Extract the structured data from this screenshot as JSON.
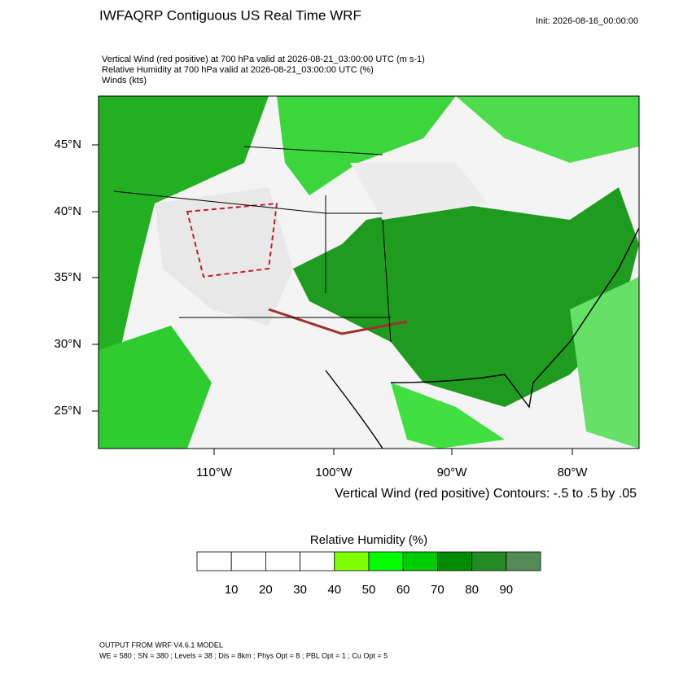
{
  "header": {
    "title": "IWFAQRP Contiguous US Real Time WRF",
    "init": "Init: 2026-08-16_00:00:00"
  },
  "subtitle": [
    "Vertical Wind (red positive) at 700 hPa valid at 2026-08-21_03:00:00 UTC   (m s-1)",
    "Relative Humidity at 700 hPa valid at 2026-08-21_03:00:00 UTC   (%)",
    "Winds   (kts)"
  ],
  "map": {
    "lat_labels": [
      "45°N",
      "40°N",
      "35°N",
      "30°N",
      "25°N"
    ],
    "lon_labels": [
      "110°W",
      "100°W",
      "90°W",
      "80°W"
    ],
    "contour_note": "Vertical Wind (red positive) Contours: -.5 to .5 by .05"
  },
  "colorbar": {
    "title": "Relative Humidity  (%)",
    "labels": [
      "10",
      "20",
      "30",
      "40",
      "50",
      "60",
      "70",
      "80",
      "90"
    ],
    "colors": [
      "#ffffff",
      "#ffffff",
      "#ffffff",
      "#ffffff",
      "#80ff00",
      "#00ff00",
      "#00cd00",
      "#008b00",
      "#228b22",
      "#548b54"
    ]
  },
  "footer": [
    "OUTPUT FROM WRF V4.6.1 MODEL",
    "WE = 580 ; SN = 380 ; Levels = 38 ; Dis = 8km ; Phys Opt = 8 ; PBL Opt = 1 ; Cu Opt = 5"
  ]
}
